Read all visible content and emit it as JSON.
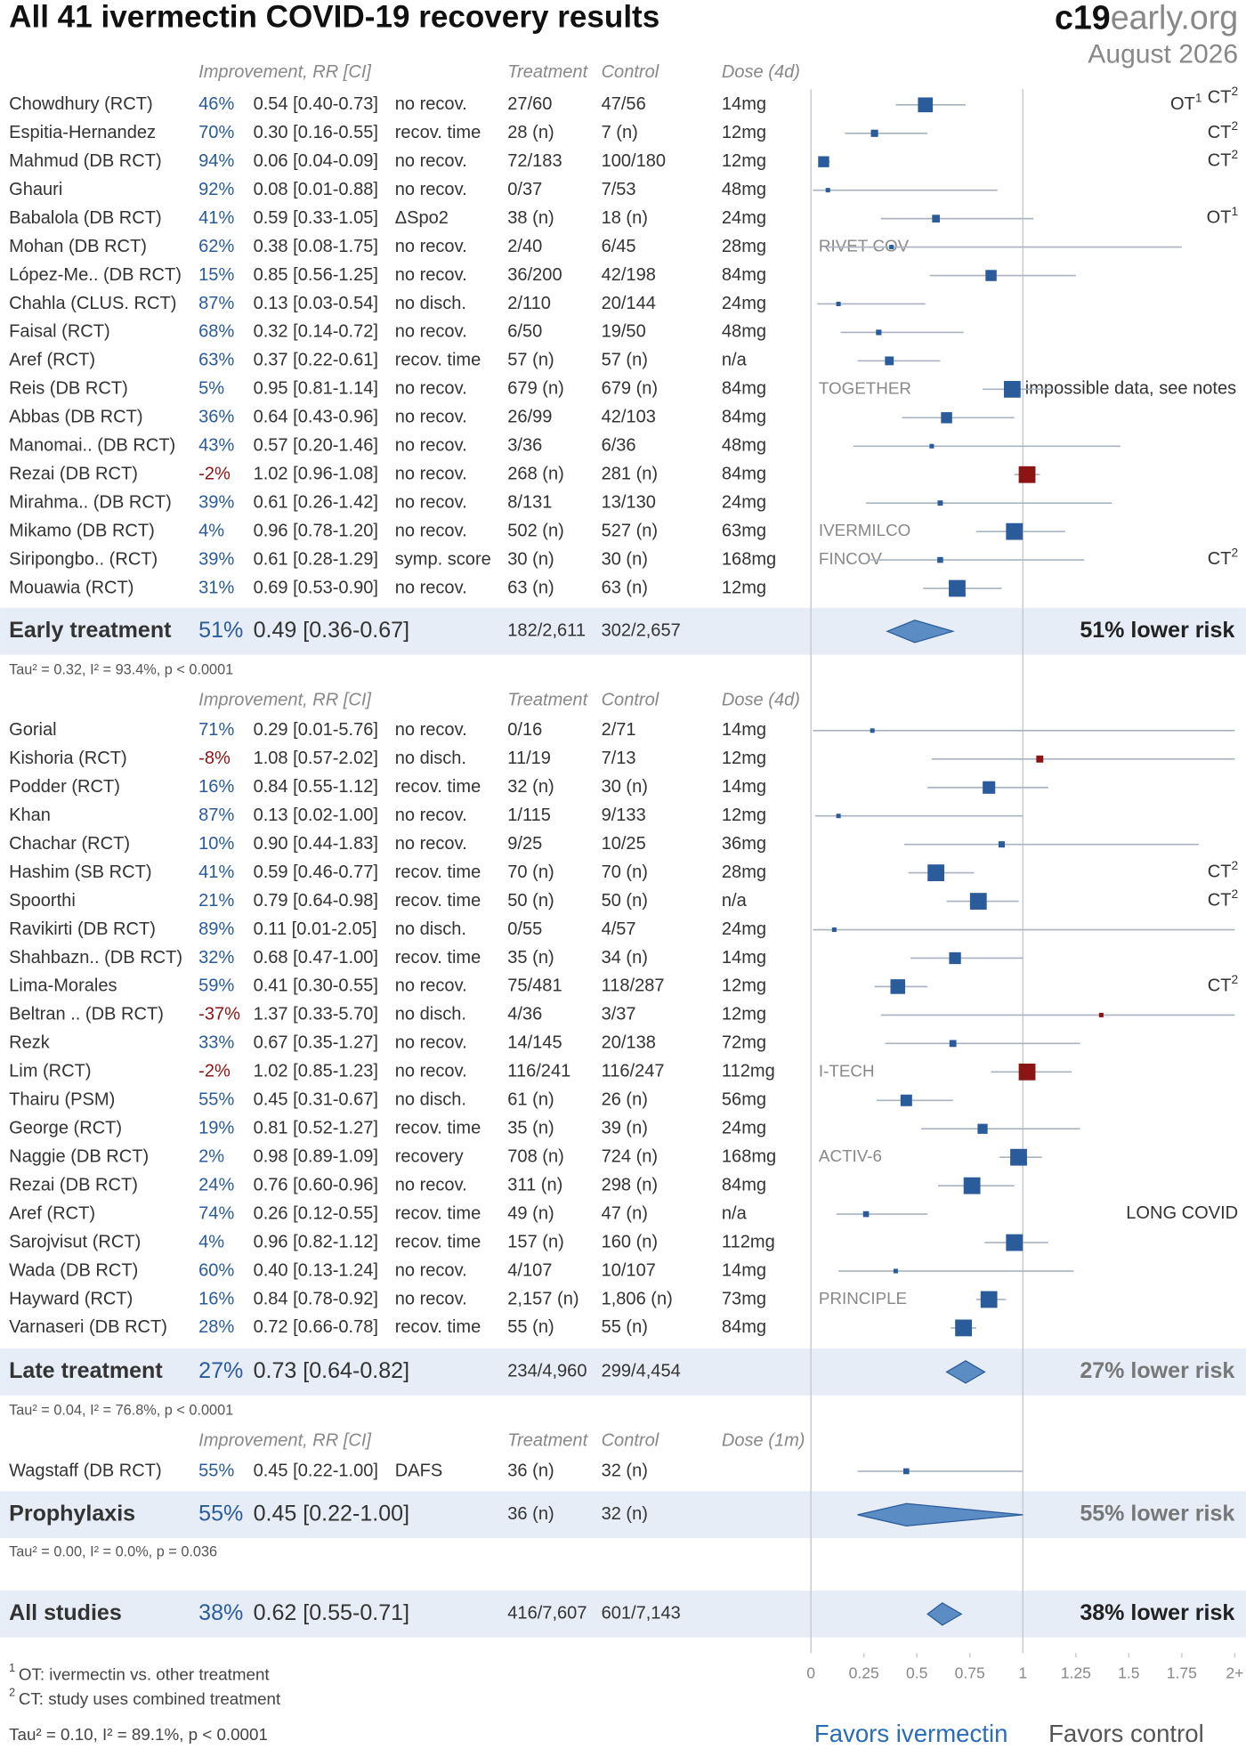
{
  "chart_data": {
    "type": "forest",
    "title": "All 41 ivermectin COVID-19 recovery results",
    "logo": {
      "bold": "c19",
      "rest": "early.org"
    },
    "date": "August 2026",
    "colors": {
      "benefit": "#2a5b9b",
      "harm": "#8b1414",
      "diamond": "#5b8cc4",
      "band": "#e6edf6",
      "ci": "#a9b3bf"
    },
    "xlim": [
      0,
      2
    ],
    "xticks": [
      0,
      0.25,
      0.5,
      0.75,
      1,
      1.25,
      1.5,
      1.75,
      {
        "value": 2,
        "label": "2+"
      }
    ],
    "sections": [
      {
        "header": {
          "improvement": "Improvement, RR [CI]",
          "treatment": "Treatment",
          "control": "Control",
          "dose": "Dose (4d)"
        },
        "studies": [
          {
            "name": "Chowdhury (RCT)",
            "improvement": "46%",
            "rr_label": "0.54 [0.40-0.73]",
            "rr": 0.54,
            "ci": [
              0.4,
              0.73
            ],
            "outcome": "no recov.",
            "treatment": "27/60",
            "control": "47/56",
            "dose": "14mg",
            "notes": [
              {
                "text": "OT",
                "sup": "1"
              },
              {
                "text": "CT",
                "sup": "2"
              }
            ]
          },
          {
            "name": "Espitia-Hernandez",
            "improvement": "70%",
            "rr_label": "0.30 [0.16-0.55]",
            "rr": 0.3,
            "ci": [
              0.16,
              0.55
            ],
            "outcome": "recov. time",
            "treatment": "28 (n)",
            "control": "7 (n)",
            "dose": "12mg",
            "notes": [
              {
                "text": "CT",
                "sup": "2"
              }
            ]
          },
          {
            "name": "Mahmud (DB RCT)",
            "improvement": "94%",
            "rr_label": "0.06 [0.04-0.09]",
            "rr": 0.06,
            "ci": [
              0.04,
              0.09
            ],
            "outcome": "no recov.",
            "treatment": "72/183",
            "control": "100/180",
            "dose": "12mg",
            "notes": [
              {
                "text": "CT",
                "sup": "2"
              }
            ]
          },
          {
            "name": "Ghauri",
            "improvement": "92%",
            "rr_label": "0.08 [0.01-0.88]",
            "rr": 0.08,
            "ci": [
              0.01,
              0.88
            ],
            "outcome": "no recov.",
            "treatment": "0/37",
            "control": "7/53",
            "dose": "48mg"
          },
          {
            "name": "Babalola (DB RCT)",
            "improvement": "41%",
            "rr_label": "0.59 [0.33-1.05]",
            "rr": 0.59,
            "ci": [
              0.33,
              1.05
            ],
            "outcome": "ΔSpo2",
            "treatment": "38 (n)",
            "control": "18 (n)",
            "dose": "24mg",
            "notes": [
              {
                "text": "OT",
                "sup": "1"
              }
            ]
          },
          {
            "name": "Mohan (DB RCT)",
            "improvement": "62%",
            "rr_label": "0.38 [0.08-1.75]",
            "rr": 0.38,
            "ci": [
              0.08,
              1.75
            ],
            "outcome": "no recov.",
            "treatment": "2/40",
            "control": "6/45",
            "dose": "28mg",
            "trial": "RIVET-COV"
          },
          {
            "name": "López-Me.. (DB RCT)",
            "improvement": "15%",
            "rr_label": "0.85 [0.56-1.25]",
            "rr": 0.85,
            "ci": [
              0.56,
              1.25
            ],
            "outcome": "no recov.",
            "treatment": "36/200",
            "control": "42/198",
            "dose": "84mg"
          },
          {
            "name": "Chahla (CLUS. RCT)",
            "improvement": "87%",
            "rr_label": "0.13 [0.03-0.54]",
            "rr": 0.13,
            "ci": [
              0.03,
              0.54
            ],
            "outcome": "no disch.",
            "treatment": "2/110",
            "control": "20/144",
            "dose": "24mg"
          },
          {
            "name": "Faisal (RCT)",
            "improvement": "68%",
            "rr_label": "0.32 [0.14-0.72]",
            "rr": 0.32,
            "ci": [
              0.14,
              0.72
            ],
            "outcome": "no recov.",
            "treatment": "6/50",
            "control": "19/50",
            "dose": "48mg"
          },
          {
            "name": "Aref (RCT)",
            "improvement": "63%",
            "rr_label": "0.37 [0.22-0.61]",
            "rr": 0.37,
            "ci": [
              0.22,
              0.61
            ],
            "outcome": "recov. time",
            "treatment": "57 (n)",
            "control": "57 (n)",
            "dose": "n/a"
          },
          {
            "name": "Reis (DB RCT)",
            "improvement": "5%",
            "rr_label": "0.95 [0.81-1.14]",
            "rr": 0.95,
            "ci": [
              0.81,
              1.14
            ],
            "outcome": "no recov.",
            "treatment": "679 (n)",
            "control": "679 (n)",
            "dose": "84mg",
            "trial": "TOGETHER",
            "remark": "impossible data, see notes"
          },
          {
            "name": "Abbas (DB RCT)",
            "improvement": "36%",
            "rr_label": "0.64 [0.43-0.96]",
            "rr": 0.64,
            "ci": [
              0.43,
              0.96
            ],
            "outcome": "no recov.",
            "treatment": "26/99",
            "control": "42/103",
            "dose": "84mg"
          },
          {
            "name": "Manomai.. (DB RCT)",
            "improvement": "43%",
            "rr_label": "0.57 [0.20-1.46]",
            "rr": 0.57,
            "ci": [
              0.2,
              1.46
            ],
            "outcome": "no recov.",
            "treatment": "3/36",
            "control": "6/36",
            "dose": "48mg"
          },
          {
            "name": "Rezai (DB RCT)",
            "improvement": "-2%",
            "rr_label": "1.02 [0.96-1.08]",
            "rr": 1.02,
            "ci": [
              0.96,
              1.08
            ],
            "outcome": "no recov.",
            "treatment": "268 (n)",
            "control": "281 (n)",
            "dose": "84mg"
          },
          {
            "name": "Mirahma.. (DB RCT)",
            "improvement": "39%",
            "rr_label": "0.61 [0.26-1.42]",
            "rr": 0.61,
            "ci": [
              0.26,
              1.42
            ],
            "outcome": "no recov.",
            "treatment": "8/131",
            "control": "13/130",
            "dose": "24mg"
          },
          {
            "name": "Mikamo (DB RCT)",
            "improvement": "4%",
            "rr_label": "0.96 [0.78-1.20]",
            "rr": 0.96,
            "ci": [
              0.78,
              1.2
            ],
            "outcome": "no recov.",
            "treatment": "502 (n)",
            "control": "527 (n)",
            "dose": "63mg",
            "trial": "IVERMILCO"
          },
          {
            "name": "Siripongbo.. (RCT)",
            "improvement": "39%",
            "rr_label": "0.61 [0.28-1.29]",
            "rr": 0.61,
            "ci": [
              0.28,
              1.29
            ],
            "outcome": "symp. score",
            "treatment": "30 (n)",
            "control": "30 (n)",
            "dose": "168mg",
            "trial": "FINCOV",
            "notes": [
              {
                "text": "CT",
                "sup": "2"
              }
            ]
          },
          {
            "name": "Mouawia (RCT)",
            "improvement": "31%",
            "rr_label": "0.69 [0.53-0.90]",
            "rr": 0.69,
            "ci": [
              0.53,
              0.9
            ],
            "outcome": "no recov.",
            "treatment": "63 (n)",
            "control": "63 (n)",
            "dose": "12mg"
          }
        ],
        "summary": {
          "name": "Early treatment",
          "improvement": "51%",
          "rr_label": "0.49 [0.36-0.67]",
          "rr": 0.49,
          "ci": [
            0.36,
            0.67
          ],
          "treatment": "182/2,611",
          "control": "302/2,657",
          "risk_label": "51% lower risk",
          "risk_color": "#222222"
        },
        "stats": "Tau² = 0.32, I² = 93.4%, p < 0.0001"
      },
      {
        "header": {
          "improvement": "Improvement, RR [CI]",
          "treatment": "Treatment",
          "control": "Control",
          "dose": "Dose (4d)"
        },
        "studies": [
          {
            "name": "Gorial",
            "improvement": "71%",
            "rr_label": "0.29 [0.01-5.76]",
            "rr": 0.29,
            "ci": [
              0.01,
              5.76
            ],
            "outcome": "no recov.",
            "treatment": "0/16",
            "control": "2/71",
            "dose": "14mg"
          },
          {
            "name": "Kishoria (RCT)",
            "improvement": "-8%",
            "rr_label": "1.08 [0.57-2.02]",
            "rr": 1.08,
            "ci": [
              0.57,
              2.02
            ],
            "outcome": "no disch.",
            "treatment": "11/19",
            "control": "7/13",
            "dose": "12mg"
          },
          {
            "name": "Podder (RCT)",
            "improvement": "16%",
            "rr_label": "0.84 [0.55-1.12]",
            "rr": 0.84,
            "ci": [
              0.55,
              1.12
            ],
            "outcome": "recov. time",
            "treatment": "32 (n)",
            "control": "30 (n)",
            "dose": "14mg"
          },
          {
            "name": "Khan",
            "improvement": "87%",
            "rr_label": "0.13 [0.02-1.00]",
            "rr": 0.13,
            "ci": [
              0.02,
              1.0
            ],
            "outcome": "no recov.",
            "treatment": "1/115",
            "control": "9/133",
            "dose": "12mg"
          },
          {
            "name": "Chachar (RCT)",
            "improvement": "10%",
            "rr_label": "0.90 [0.44-1.83]",
            "rr": 0.9,
            "ci": [
              0.44,
              1.83
            ],
            "outcome": "no recov.",
            "treatment": "9/25",
            "control": "10/25",
            "dose": "36mg"
          },
          {
            "name": "Hashim (SB RCT)",
            "improvement": "41%",
            "rr_label": "0.59 [0.46-0.77]",
            "rr": 0.59,
            "ci": [
              0.46,
              0.77
            ],
            "outcome": "recov. time",
            "treatment": "70 (n)",
            "control": "70 (n)",
            "dose": "28mg",
            "notes": [
              {
                "text": "CT",
                "sup": "2"
              }
            ]
          },
          {
            "name": "Spoorthi",
            "improvement": "21%",
            "rr_label": "0.79 [0.64-0.98]",
            "rr": 0.79,
            "ci": [
              0.64,
              0.98
            ],
            "outcome": "recov. time",
            "treatment": "50 (n)",
            "control": "50 (n)",
            "dose": "n/a",
            "notes": [
              {
                "text": "CT",
                "sup": "2"
              }
            ]
          },
          {
            "name": "Ravikirti (DB RCT)",
            "improvement": "89%",
            "rr_label": "0.11 [0.01-2.05]",
            "rr": 0.11,
            "ci": [
              0.01,
              2.05
            ],
            "outcome": "no disch.",
            "treatment": "0/55",
            "control": "4/57",
            "dose": "24mg"
          },
          {
            "name": "Shahbazn.. (DB RCT)",
            "improvement": "32%",
            "rr_label": "0.68 [0.47-1.00]",
            "rr": 0.68,
            "ci": [
              0.47,
              1.0
            ],
            "outcome": "recov. time",
            "treatment": "35 (n)",
            "control": "34 (n)",
            "dose": "14mg"
          },
          {
            "name": "Lima-Morales",
            "improvement": "59%",
            "rr_label": "0.41 [0.30-0.55]",
            "rr": 0.41,
            "ci": [
              0.3,
              0.55
            ],
            "outcome": "no recov.",
            "treatment": "75/481",
            "control": "118/287",
            "dose": "12mg",
            "notes": [
              {
                "text": "CT",
                "sup": "2"
              }
            ]
          },
          {
            "name": "Beltran .. (DB RCT)",
            "improvement": "-37%",
            "rr_label": "1.37 [0.33-5.70]",
            "rr": 1.37,
            "ci": [
              0.33,
              5.7
            ],
            "outcome": "no disch.",
            "treatment": "4/36",
            "control": "3/37",
            "dose": "12mg"
          },
          {
            "name": "Rezk",
            "improvement": "33%",
            "rr_label": "0.67 [0.35-1.27]",
            "rr": 0.67,
            "ci": [
              0.35,
              1.27
            ],
            "outcome": "no recov.",
            "treatment": "14/145",
            "control": "20/138",
            "dose": "72mg"
          },
          {
            "name": "Lim (RCT)",
            "improvement": "-2%",
            "rr_label": "1.02 [0.85-1.23]",
            "rr": 1.02,
            "ci": [
              0.85,
              1.23
            ],
            "outcome": "no recov.",
            "treatment": "116/241",
            "control": "116/247",
            "dose": "112mg",
            "trial": "I-TECH"
          },
          {
            "name": "Thairu (PSM)",
            "improvement": "55%",
            "rr_label": "0.45 [0.31-0.67]",
            "rr": 0.45,
            "ci": [
              0.31,
              0.67
            ],
            "outcome": "no disch.",
            "treatment": "61 (n)",
            "control": "26 (n)",
            "dose": "56mg"
          },
          {
            "name": "George (RCT)",
            "improvement": "19%",
            "rr_label": "0.81 [0.52-1.27]",
            "rr": 0.81,
            "ci": [
              0.52,
              1.27
            ],
            "outcome": "recov. time",
            "treatment": "35 (n)",
            "control": "39 (n)",
            "dose": "24mg"
          },
          {
            "name": "Naggie (DB RCT)",
            "improvement": "2%",
            "rr_label": "0.98 [0.89-1.09]",
            "rr": 0.98,
            "ci": [
              0.89,
              1.09
            ],
            "outcome": "recovery",
            "treatment": "708 (n)",
            "control": "724 (n)",
            "dose": "168mg",
            "trial": "ACTIV-6"
          },
          {
            "name": "Rezai (DB RCT)",
            "improvement": "24%",
            "rr_label": "0.76 [0.60-0.96]",
            "rr": 0.76,
            "ci": [
              0.6,
              0.96
            ],
            "outcome": "no recov.",
            "treatment": "311 (n)",
            "control": "298 (n)",
            "dose": "84mg"
          },
          {
            "name": "Aref (RCT)",
            "improvement": "74%",
            "rr_label": "0.26 [0.12-0.55]",
            "rr": 0.26,
            "ci": [
              0.12,
              0.55
            ],
            "outcome": "recov. time",
            "treatment": "49 (n)",
            "control": "47 (n)",
            "dose": "n/a",
            "notes": [
              {
                "text": "LONG COVID"
              }
            ]
          },
          {
            "name": "Sarojvisut (RCT)",
            "improvement": "4%",
            "rr_label": "0.96 [0.82-1.12]",
            "rr": 0.96,
            "ci": [
              0.82,
              1.12
            ],
            "outcome": "recov. time",
            "treatment": "157 (n)",
            "control": "160 (n)",
            "dose": "112mg"
          },
          {
            "name": "Wada (DB RCT)",
            "improvement": "60%",
            "rr_label": "0.40 [0.13-1.24]",
            "rr": 0.4,
            "ci": [
              0.13,
              1.24
            ],
            "outcome": "no recov.",
            "treatment": "4/107",
            "control": "10/107",
            "dose": "14mg"
          },
          {
            "name": "Hayward (RCT)",
            "improvement": "16%",
            "rr_label": "0.84 [0.78-0.92]",
            "rr": 0.84,
            "ci": [
              0.78,
              0.92
            ],
            "outcome": "no recov.",
            "treatment": "2,157 (n)",
            "control": "1,806 (n)",
            "dose": "73mg",
            "trial": "PRINCIPLE"
          },
          {
            "name": "Varnaseri (DB RCT)",
            "improvement": "28%",
            "rr_label": "0.72 [0.66-0.78]",
            "rr": 0.72,
            "ci": [
              0.66,
              0.78
            ],
            "outcome": "recov. time",
            "treatment": "55 (n)",
            "control": "55 (n)",
            "dose": "84mg"
          }
        ],
        "summary": {
          "name": "Late treatment",
          "improvement": "27%",
          "rr_label": "0.73 [0.64-0.82]",
          "rr": 0.73,
          "ci": [
            0.64,
            0.82
          ],
          "treatment": "234/4,960",
          "control": "299/4,454",
          "risk_label": "27% lower risk",
          "risk_color": "#777777"
        },
        "stats": "Tau² = 0.04, I² = 76.8%, p < 0.0001"
      },
      {
        "header": {
          "improvement": "Improvement, RR [CI]",
          "treatment": "Treatment",
          "control": "Control",
          "dose": "Dose (1m)"
        },
        "studies": [
          {
            "name": "Wagstaff (DB RCT)",
            "improvement": "55%",
            "rr_label": "0.45 [0.22-1.00]",
            "rr": 0.45,
            "ci": [
              0.22,
              1.0
            ],
            "outcome": "DAFS",
            "treatment": "36 (n)",
            "control": "32 (n)"
          }
        ],
        "summary": {
          "name": "Prophylaxis",
          "improvement": "55%",
          "rr_label": "0.45 [0.22-1.00]",
          "rr": 0.45,
          "ci": [
            0.22,
            1.0
          ],
          "treatment": "36 (n)",
          "control": "32 (n)",
          "risk_label": "55% lower risk",
          "risk_color": "#777777"
        },
        "stats": "Tau² = 0.00, I² = 0.0%, p = 0.036"
      }
    ],
    "overall": {
      "name": "All studies",
      "improvement": "38%",
      "rr_label": "0.62 [0.55-0.71]",
      "rr": 0.62,
      "ci": [
        0.55,
        0.71
      ],
      "treatment": "416/7,607",
      "control": "601/7,143",
      "risk_label": "38% lower risk",
      "risk_color": "#222222"
    },
    "overall_stats": "Tau² = 0.10, I² = 89.1%, p < 0.0001",
    "footnotes": [
      {
        "sup": "1",
        "text": "OT: ivermectin vs. other treatment"
      },
      {
        "sup": "2",
        "text": "CT: study uses combined treatment"
      }
    ],
    "favors": [
      "Favors ivermectin",
      "Favors control"
    ]
  }
}
